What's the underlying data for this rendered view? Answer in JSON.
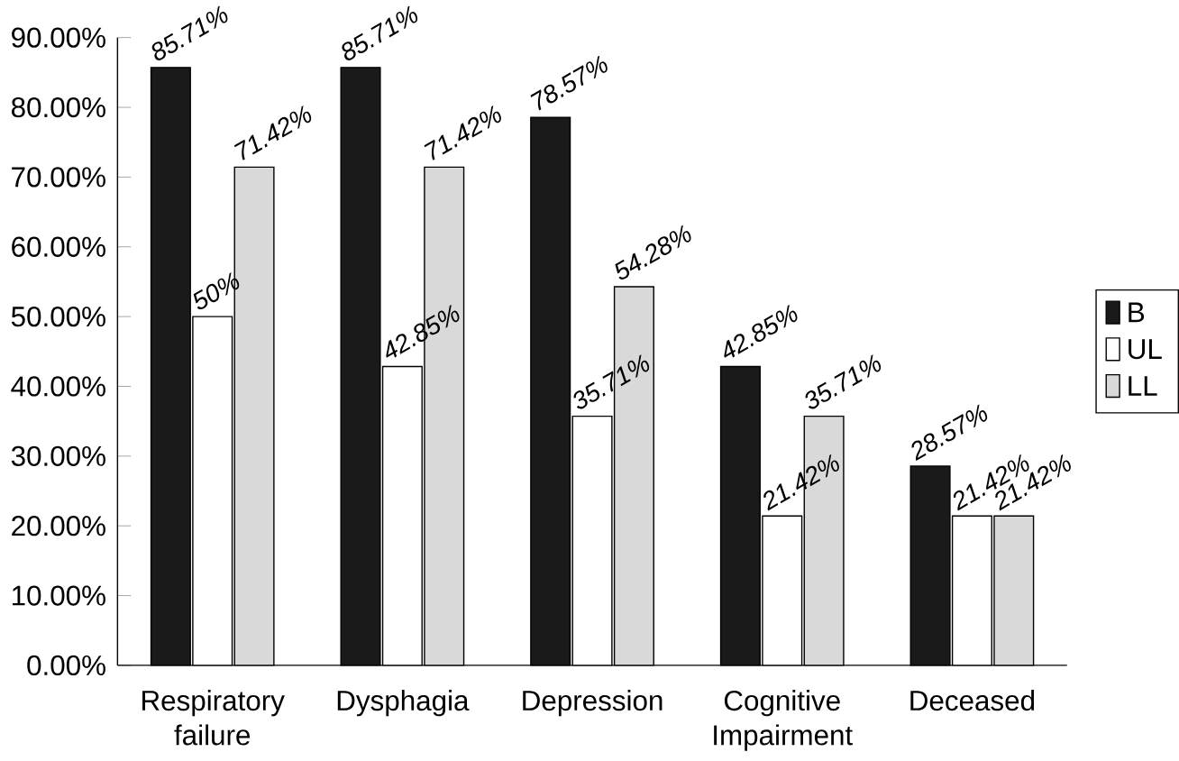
{
  "chart_data": {
    "type": "bar",
    "categories": [
      "Respiratory failure",
      "Dysphagia",
      "Depression",
      "Cognitive Impairment",
      "Deceased"
    ],
    "series": [
      {
        "name": "B",
        "color": "#1a1a1a",
        "values": [
          85.71,
          85.71,
          78.57,
          42.85,
          28.57
        ],
        "value_labels": [
          "85.71%",
          "85.71%",
          "78.57%",
          "42.85%",
          "28.57%"
        ]
      },
      {
        "name": "UL",
        "color": "#ffffff",
        "values": [
          50,
          42.85,
          35.71,
          21.42,
          21.42
        ],
        "value_labels": [
          "50%",
          "42.85%",
          "35.71%",
          "21.42%",
          "21.42%"
        ]
      },
      {
        "name": "LL",
        "color": "#d9d9d9",
        "values": [
          71.42,
          71.42,
          54.28,
          35.71,
          21.42
        ],
        "value_labels": [
          "71.42%",
          "71.42%",
          "54.28%",
          "35.71%",
          "21.42%"
        ]
      }
    ],
    "ylim": [
      0,
      90
    ],
    "yticks": [
      {
        "value": 0,
        "label": "0.00%"
      },
      {
        "value": 10,
        "label": "10.00%"
      },
      {
        "value": 20,
        "label": "20.00%"
      },
      {
        "value": 30,
        "label": "30.00%"
      },
      {
        "value": 40,
        "label": "40.00%"
      },
      {
        "value": 50,
        "label": "50.00%"
      },
      {
        "value": 60,
        "label": "60.00%"
      },
      {
        "value": 70,
        "label": "70.00%"
      },
      {
        "value": 80,
        "label": "80.00%"
      },
      {
        "value": 90,
        "label": "90.00%"
      }
    ],
    "grid": false,
    "legend": "right"
  }
}
